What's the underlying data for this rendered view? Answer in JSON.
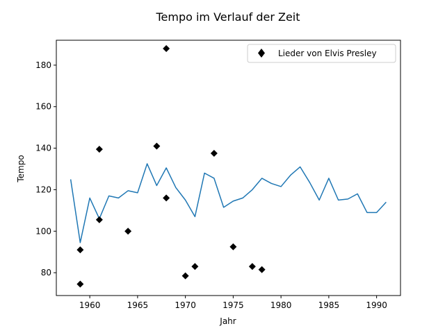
{
  "chart_data": {
    "type": "scatter+line",
    "title": "Tempo im Verlauf der Zeit",
    "xlabel": "Jahr",
    "ylabel": "Tempo",
    "xlim": [
      1956.5,
      1992.5
    ],
    "ylim": [
      69,
      192
    ],
    "xticks": [
      1960,
      1965,
      1970,
      1975,
      1980,
      1985,
      1990
    ],
    "yticks": [
      80,
      100,
      120,
      140,
      160,
      180
    ],
    "grid": false,
    "legend": {
      "placement": "top-right",
      "entries": [
        {
          "label": "Lieder von Elvis Presley",
          "marker": "diamond",
          "color": "#000000"
        }
      ]
    },
    "series": [
      {
        "kind": "line",
        "color": "#1f77b4",
        "x": [
          1958,
          1959,
          1960,
          1961,
          1962,
          1963,
          1964,
          1965,
          1966,
          1967,
          1968,
          1969,
          1970,
          1971,
          1972,
          1973,
          1974,
          1975,
          1976,
          1977,
          1978,
          1979,
          1980,
          1981,
          1982,
          1983,
          1984,
          1985,
          1986,
          1987,
          1988,
          1989,
          1990,
          1991
        ],
        "y": [
          125,
          94.5,
          116,
          106,
          117,
          116,
          119.5,
          118.5,
          132.5,
          122,
          130.5,
          121,
          115,
          107,
          128,
          125.5,
          111.5,
          114.5,
          116,
          120,
          125.5,
          123,
          121.5,
          127,
          131,
          123.5,
          115,
          125.5,
          115,
          115.5,
          118,
          109,
          109,
          114
        ]
      },
      {
        "kind": "scatter",
        "name": "Lieder von Elvis Presley",
        "color": "#000000",
        "marker": "diamond",
        "x": [
          1959,
          1959,
          1961,
          1961,
          1964,
          1967,
          1968,
          1968,
          1970,
          1971,
          1973,
          1975,
          1977,
          1978
        ],
        "y": [
          74.5,
          91,
          139.5,
          105.5,
          100,
          141,
          188,
          116,
          78.5,
          83,
          137.5,
          92.5,
          83,
          81.5
        ]
      }
    ]
  }
}
